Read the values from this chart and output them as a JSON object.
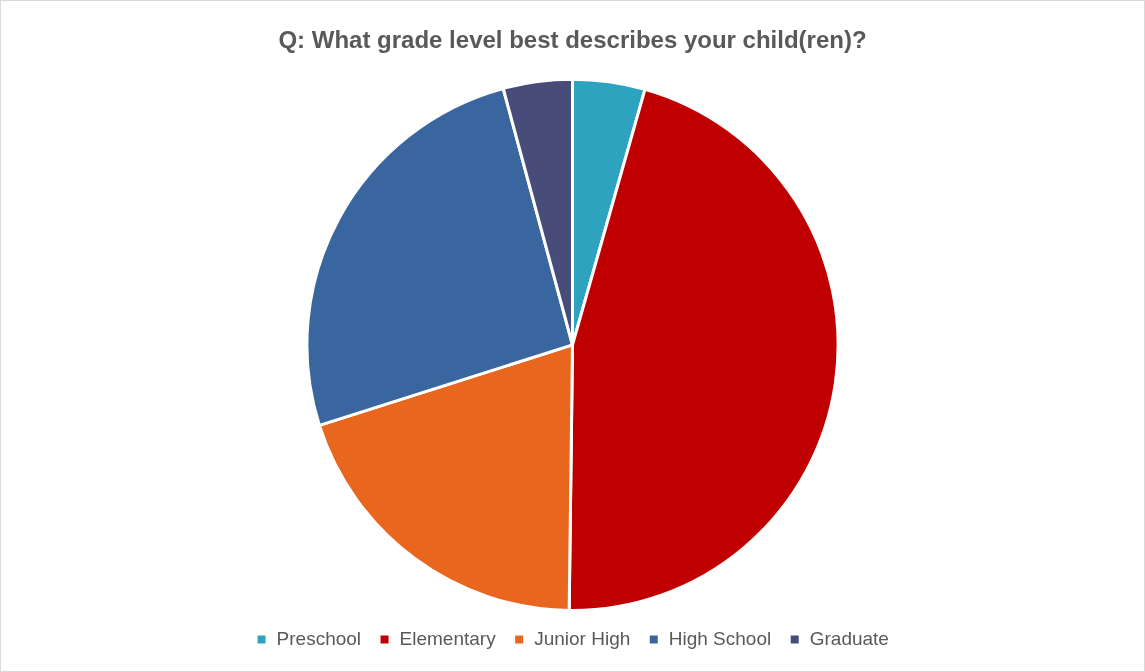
{
  "chart_data": {
    "type": "pie",
    "title": "Q: What grade level best describes your child(ren)?",
    "categories": [
      "Preschool",
      "Elementary",
      "Junior High",
      "High School",
      "Graduate"
    ],
    "values": [
      4.4,
      45.8,
      19.9,
      25.7,
      4.2
    ],
    "colors": [
      "#2ea3c0",
      "#c00000",
      "#e8661e",
      "#3a66a0",
      "#474c78"
    ],
    "legend": "bottom"
  }
}
